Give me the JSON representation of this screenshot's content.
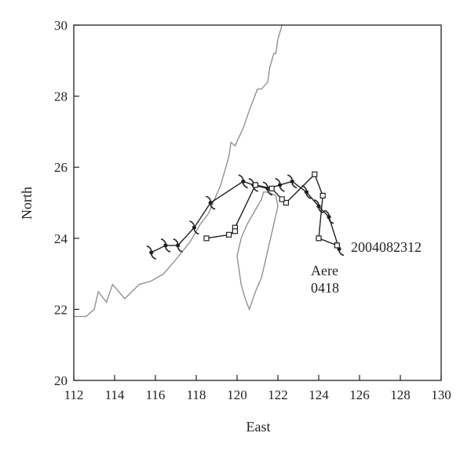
{
  "chart_data": {
    "type": "line",
    "title": "",
    "xlabel": "East",
    "ylabel": "North",
    "xlim": [
      112,
      130
    ],
    "ylim": [
      20,
      30
    ],
    "xticks": [
      "112",
      "114",
      "116",
      "118",
      "120",
      "122",
      "124",
      "126",
      "128",
      "130"
    ],
    "yticks": [
      "20",
      "22",
      "24",
      "26",
      "28",
      "30"
    ],
    "grid": false,
    "annotations": {
      "timestamp": "2004082312",
      "storm_name": "Aere",
      "storm_number": "0418"
    },
    "series": [
      {
        "marker": "typhoon-symbol",
        "x": [
          125.0,
          124.5,
          124.0,
          123.4,
          122.7,
          122.1,
          121.5,
          120.8,
          120.3,
          118.7,
          117.9,
          117.1,
          116.5,
          115.8
        ],
        "y": [
          23.7,
          24.6,
          24.9,
          25.3,
          25.6,
          25.5,
          25.4,
          25.5,
          25.6,
          25.0,
          24.3,
          23.8,
          23.8,
          23.6
        ]
      },
      {
        "marker": "square",
        "x": [
          124.9,
          124.0,
          124.2,
          123.8,
          122.4,
          122.2,
          121.7,
          120.9,
          119.9,
          119.9,
          119.6,
          118.5
        ],
        "y": [
          23.8,
          24.0,
          25.2,
          25.8,
          25.0,
          25.1,
          25.4,
          25.5,
          24.3,
          24.2,
          24.1,
          24.0
        ]
      }
    ],
    "coastline": {
      "color": "#8a8a8a",
      "mainland": {
        "x": [
          112.0,
          112.6,
          113.0,
          113.2,
          113.6,
          113.9,
          114.5,
          115.2,
          115.8,
          116.4,
          117.0,
          117.7,
          118.2,
          118.6,
          118.9,
          119.2,
          119.4,
          119.6,
          119.7,
          119.9,
          120.3,
          120.6,
          120.8,
          121.0,
          121.2,
          121.5,
          121.6,
          121.8,
          121.9,
          122.0,
          122.2
        ],
        "y": [
          21.8,
          21.8,
          22.0,
          22.5,
          22.2,
          22.7,
          22.3,
          22.7,
          22.8,
          23.0,
          23.4,
          23.9,
          24.4,
          24.7,
          25.1,
          25.5,
          25.9,
          26.3,
          26.7,
          26.6,
          27.1,
          27.6,
          27.9,
          28.2,
          28.2,
          28.4,
          28.8,
          29.2,
          29.2,
          29.6,
          30.0
        ]
      },
      "taiwan": {
        "x": [
          121.5,
          121.9,
          122.0,
          121.8,
          121.6,
          121.4,
          121.2,
          120.9,
          120.6,
          120.4,
          120.2,
          120.0,
          120.2,
          120.5,
          120.8,
          121.0,
          121.2,
          121.3,
          121.5
        ],
        "y": [
          25.3,
          25.2,
          24.9,
          24.4,
          23.9,
          23.4,
          22.9,
          22.5,
          22.0,
          22.3,
          22.7,
          23.5,
          24.0,
          24.4,
          24.7,
          24.9,
          25.1,
          25.3,
          25.3
        ]
      }
    }
  }
}
